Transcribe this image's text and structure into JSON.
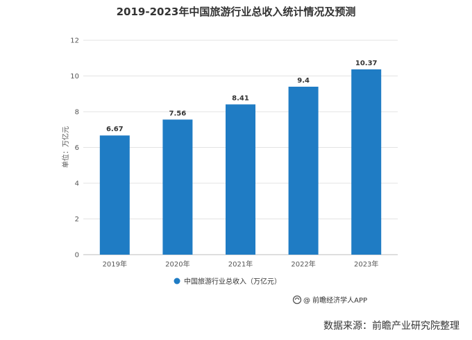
{
  "chart_data": {
    "type": "bar",
    "title": "2019-2023年中国旅游行业总收入统计情况及预测",
    "ylabel": "单位：万亿元",
    "xlabel": "",
    "categories": [
      "2019年",
      "2020年",
      "2021年",
      "2022年",
      "2023年"
    ],
    "series": [
      {
        "name": "中国旅游行业总收入（万亿元）",
        "values": [
          6.67,
          7.56,
          8.41,
          9.4,
          10.37
        ]
      }
    ],
    "data_labels": [
      "6.67",
      "7.56",
      "8.41",
      "9.4",
      "10.37"
    ],
    "ylim": [
      0,
      12
    ],
    "yticks": [
      "0",
      "2",
      "4",
      "6",
      "8",
      "10",
      "12"
    ],
    "grid": true,
    "legend": "bottom",
    "bar_color": "#1f7cc4"
  },
  "footer": {
    "credit": "@ 前瞻经济学人APP",
    "source": "数据来源：前瞻产业研究院整理"
  },
  "watermark": "前瞻产业研究院"
}
